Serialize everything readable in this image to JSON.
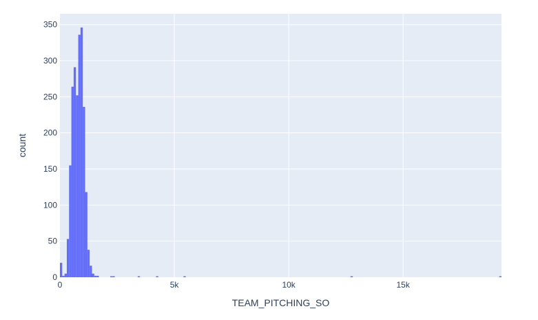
{
  "chart_data": {
    "type": "bar",
    "subtype": "histogram",
    "title": "",
    "xlabel": "TEAM_PITCHING_SO",
    "ylabel": "count",
    "xlim": [
      0,
      19300
    ],
    "ylim": [
      0,
      365
    ],
    "x_ticks": [
      0,
      5000,
      10000,
      15000
    ],
    "x_tick_labels": [
      "0",
      "5k",
      "10k",
      "15k"
    ],
    "y_ticks": [
      0,
      50,
      100,
      150,
      200,
      250,
      300,
      350
    ],
    "y_tick_labels": [
      "0",
      "50",
      "100",
      "150",
      "200",
      "250",
      "300",
      "350"
    ],
    "grid": true,
    "legend": "none",
    "bin_width": 100,
    "bins": [
      {
        "x0": 0,
        "count": 20
      },
      {
        "x0": 100,
        "count": 2
      },
      {
        "x0": 200,
        "count": 5
      },
      {
        "x0": 300,
        "count": 53
      },
      {
        "x0": 400,
        "count": 155
      },
      {
        "x0": 500,
        "count": 264
      },
      {
        "x0": 600,
        "count": 291
      },
      {
        "x0": 700,
        "count": 252
      },
      {
        "x0": 800,
        "count": 336
      },
      {
        "x0": 900,
        "count": 346
      },
      {
        "x0": 1000,
        "count": 236
      },
      {
        "x0": 1100,
        "count": 118
      },
      {
        "x0": 1200,
        "count": 38
      },
      {
        "x0": 1300,
        "count": 16
      },
      {
        "x0": 1400,
        "count": 5
      },
      {
        "x0": 1500,
        "count": 2
      },
      {
        "x0": 1600,
        "count": 2
      },
      {
        "x0": 2200,
        "count": 1
      },
      {
        "x0": 2300,
        "count": 1
      },
      {
        "x0": 3400,
        "count": 1
      },
      {
        "x0": 4200,
        "count": 1
      },
      {
        "x0": 5400,
        "count": 1
      },
      {
        "x0": 12700,
        "count": 1
      },
      {
        "x0": 19200,
        "count": 1
      }
    ]
  },
  "colors": {
    "bar": "#636efa",
    "plot_bg": "#e5ecf6",
    "grid": "#ffffff",
    "text": "#2a3f5f",
    "paper_bg": "#ffffff"
  }
}
